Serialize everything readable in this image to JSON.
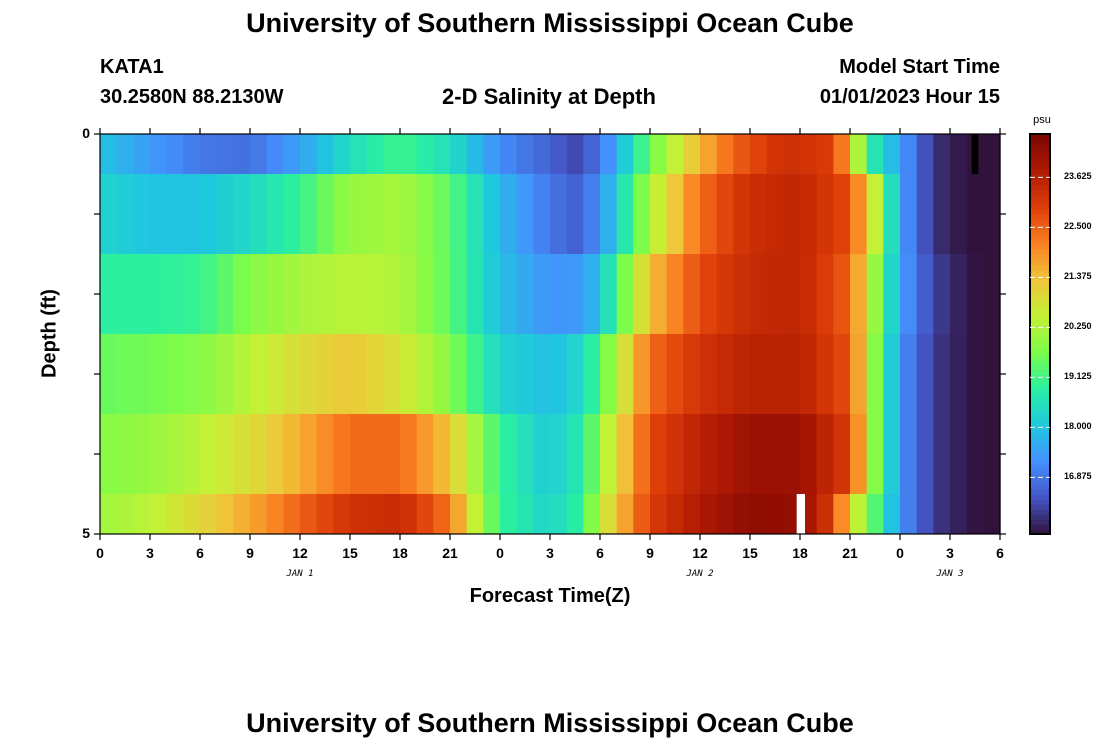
{
  "page": {
    "title": "University of Southern Mississippi Ocean Cube",
    "footer_title": "University of Southern Mississippi Ocean Cube",
    "station": "KATA1",
    "coordinates": "30.2580N  88.2130W",
    "subtitle": "2-D Salinity at Depth",
    "model_start_label": "Model Start Time",
    "model_start_value": "01/01/2023 Hour 15"
  },
  "chart_data": {
    "type": "heatmap",
    "title": "2-D Salinity at Depth",
    "xlabel": "Forecast Time(Z)",
    "ylabel": "Depth (ft)",
    "x_units": "hours since 01/01/2023 00Z",
    "x_range": [
      0,
      54
    ],
    "x_ticks": [
      0,
      3,
      6,
      9,
      12,
      15,
      18,
      21,
      24,
      27,
      30,
      33,
      36,
      39,
      42,
      45,
      48,
      51,
      54
    ],
    "x_tick_labels": [
      "0",
      "3",
      "6",
      "9",
      "12",
      "15",
      "18",
      "21",
      "0",
      "3",
      "6",
      "9",
      "12",
      "15",
      "18",
      "21",
      "0",
      "3",
      "6"
    ],
    "date_labels": [
      {
        "text": "JAN 1",
        "x": 12
      },
      {
        "text": "JAN 2",
        "x": 36
      },
      {
        "text": "JAN 3",
        "x": 51
      }
    ],
    "y_range": [
      0,
      5
    ],
    "y_tick_labels": [
      {
        "text": "0",
        "y": 0
      },
      {
        "text": "5",
        "y": 5
      }
    ],
    "y_minor_ticks": [
      1,
      2,
      3,
      4
    ],
    "rows": [
      {
        "depth_top": 0.0,
        "depth_bottom": 0.5,
        "profile": [
          [
            0,
            18.0
          ],
          [
            3,
            17.4
          ],
          [
            6,
            16.9
          ],
          [
            9,
            16.8
          ],
          [
            12,
            17.5
          ],
          [
            15,
            18.5
          ],
          [
            18,
            19.1
          ],
          [
            21,
            18.5
          ],
          [
            24,
            17.2
          ],
          [
            27,
            16.6
          ],
          [
            28.5,
            16.3
          ],
          [
            30,
            16.8
          ],
          [
            33,
            19.5
          ],
          [
            36,
            21.5
          ],
          [
            38,
            22.5
          ],
          [
            41,
            23.3
          ],
          [
            44,
            23.0
          ],
          [
            45,
            21.5
          ],
          [
            46,
            19.0
          ],
          [
            48,
            17.5
          ],
          [
            50,
            16.0
          ],
          [
            52,
            15.6
          ],
          [
            54,
            15.5
          ]
        ]
      },
      {
        "depth_top": 0.5,
        "depth_bottom": 1.5,
        "profile": [
          [
            0,
            18.3
          ],
          [
            3,
            18.0
          ],
          [
            6,
            18.0
          ],
          [
            9,
            18.4
          ],
          [
            12,
            19.0
          ],
          [
            15,
            20.0
          ],
          [
            18,
            20.2
          ],
          [
            21,
            19.4
          ],
          [
            24,
            17.8
          ],
          [
            27,
            16.9
          ],
          [
            28.5,
            16.6
          ],
          [
            30,
            17.2
          ],
          [
            33,
            20.2
          ],
          [
            36,
            22.4
          ],
          [
            39,
            23.3
          ],
          [
            42,
            23.5
          ],
          [
            45,
            22.8
          ],
          [
            46.5,
            20.5
          ],
          [
            48,
            17.5
          ],
          [
            50,
            16.0
          ],
          [
            52,
            15.6
          ],
          [
            54,
            15.5
          ]
        ]
      },
      {
        "depth_top": 1.5,
        "depth_bottom": 2.5,
        "profile": [
          [
            0,
            18.9
          ],
          [
            3,
            18.9
          ],
          [
            6,
            19.0
          ],
          [
            9,
            19.8
          ],
          [
            12,
            20.2
          ],
          [
            15,
            20.4
          ],
          [
            18,
            20.3
          ],
          [
            21,
            19.4
          ],
          [
            24,
            17.9
          ],
          [
            27,
            17.3
          ],
          [
            29,
            17.4
          ],
          [
            30,
            18.0
          ],
          [
            33,
            21.4
          ],
          [
            36,
            22.8
          ],
          [
            39,
            23.4
          ],
          [
            42,
            23.5
          ],
          [
            45,
            22.5
          ],
          [
            46.5,
            20.0
          ],
          [
            48,
            17.5
          ],
          [
            50,
            16.2
          ],
          [
            52,
            15.7
          ],
          [
            54,
            15.5
          ]
        ]
      },
      {
        "depth_top": 2.5,
        "depth_bottom": 3.5,
        "profile": [
          [
            0,
            19.5
          ],
          [
            3,
            19.6
          ],
          [
            6,
            19.8
          ],
          [
            9,
            20.4
          ],
          [
            12,
            20.9
          ],
          [
            15,
            21.3
          ],
          [
            18,
            20.8
          ],
          [
            21,
            19.8
          ],
          [
            24,
            18.3
          ],
          [
            27,
            17.9
          ],
          [
            29,
            18.4
          ],
          [
            30,
            19.3
          ],
          [
            33,
            22.4
          ],
          [
            36,
            23.2
          ],
          [
            39,
            23.6
          ],
          [
            42,
            23.6
          ],
          [
            45,
            22.7
          ],
          [
            46.5,
            19.8
          ],
          [
            48,
            17.3
          ],
          [
            50,
            16.1
          ],
          [
            52,
            15.7
          ],
          [
            54,
            15.5
          ]
        ]
      },
      {
        "depth_top": 3.5,
        "depth_bottom": 4.5,
        "profile": [
          [
            0,
            19.8
          ],
          [
            3,
            20.0
          ],
          [
            6,
            20.4
          ],
          [
            9,
            20.9
          ],
          [
            12,
            21.6
          ],
          [
            15,
            22.4
          ],
          [
            18,
            22.4
          ],
          [
            21,
            21.3
          ],
          [
            24,
            19.0
          ],
          [
            27,
            18.1
          ],
          [
            29,
            18.8
          ],
          [
            30,
            20.0
          ],
          [
            33,
            22.8
          ],
          [
            36,
            23.6
          ],
          [
            39,
            24.1
          ],
          [
            42,
            24.1
          ],
          [
            45,
            23.0
          ],
          [
            46.5,
            19.8
          ],
          [
            48,
            17.3
          ],
          [
            50,
            16.1
          ],
          [
            52,
            15.7
          ],
          [
            54,
            15.5
          ]
        ]
      },
      {
        "depth_top": 4.5,
        "depth_bottom": 5.0,
        "profile": [
          [
            0,
            20.1
          ],
          [
            3,
            20.4
          ],
          [
            6,
            21.0
          ],
          [
            9,
            21.7
          ],
          [
            12,
            22.5
          ],
          [
            15,
            23.2
          ],
          [
            18,
            23.4
          ],
          [
            21,
            22.3
          ],
          [
            22.5,
            20.5
          ],
          [
            24,
            19.0
          ],
          [
            27,
            18.3
          ],
          [
            29,
            19.0
          ],
          [
            30,
            20.5
          ],
          [
            33,
            23.0
          ],
          [
            36,
            23.8
          ],
          [
            39,
            24.3
          ],
          [
            42,
            24.2
          ],
          [
            44,
            23.0
          ],
          [
            45,
            21.0
          ],
          [
            46.5,
            19.3
          ],
          [
            48,
            17.3
          ],
          [
            50,
            16.1
          ],
          [
            52,
            15.7
          ],
          [
            54,
            15.5
          ]
        ]
      }
    ],
    "markers": [
      {
        "color": "#000000",
        "x_start": 52.3,
        "x_end": 52.7,
        "depth_top": 0.0,
        "depth_bottom": 0.5
      },
      {
        "color": "#ffffff",
        "x_start": 41.8,
        "x_end": 42.3,
        "depth_top": 4.5,
        "depth_bottom": 5.0
      }
    ],
    "colorbar": {
      "unit": "psu",
      "vmin": 15.6,
      "vmax": 24.6,
      "ticks": [
        16.875,
        18.0,
        19.125,
        20.25,
        21.375,
        22.5,
        23.625
      ],
      "tick_labels": [
        "16.875",
        "18.000",
        "19.125",
        "20.250",
        "21.375",
        "22.500",
        "23.625"
      ],
      "colors": [
        "#30123b",
        "#4454c4",
        "#4490fe",
        "#1fc8de",
        "#29efa2",
        "#7cfc4a",
        "#c4f135",
        "#f0c63a",
        "#fb8022",
        "#dd3d08",
        "#b01a03",
        "#7a0403"
      ]
    }
  }
}
